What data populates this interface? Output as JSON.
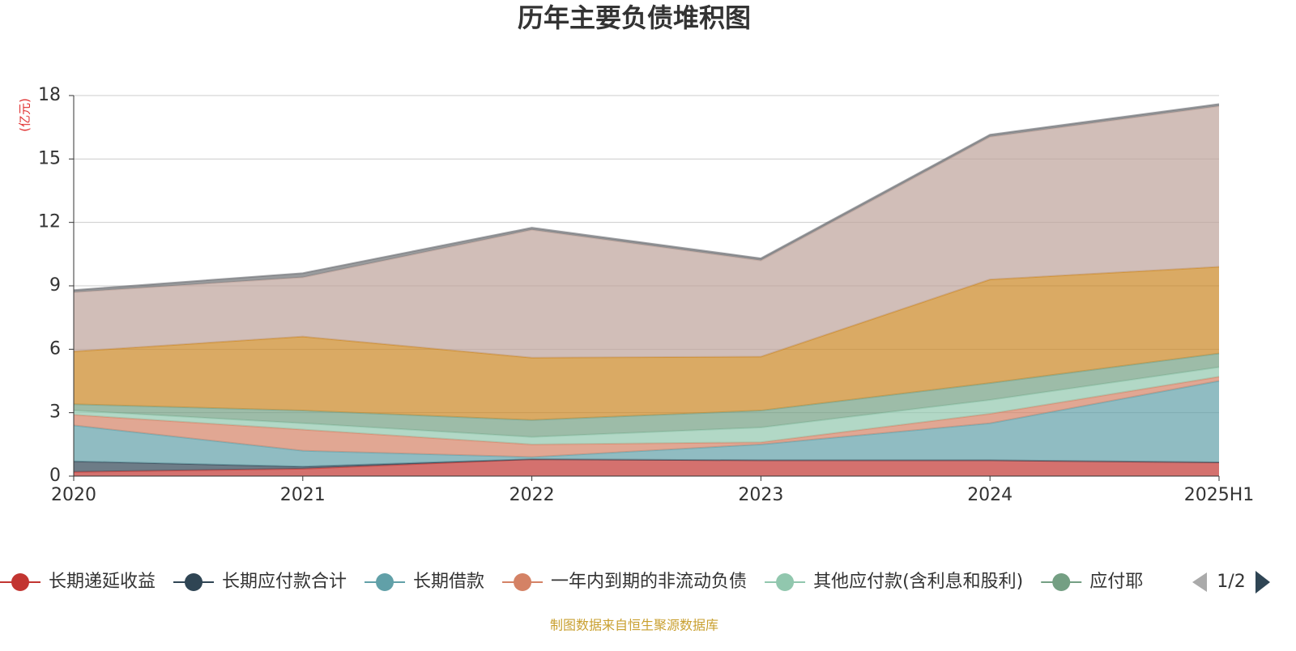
{
  "chart_data": {
    "type": "stacked-area",
    "title": "历年主要负债堆积图",
    "y_unit": "(亿元)",
    "source": "制图数据来自恒生聚源数据库",
    "categories": [
      "2020",
      "2021",
      "2022",
      "2023",
      "2024",
      "2025H1"
    ],
    "ylim": [
      0,
      18
    ],
    "yticks": [
      0,
      3,
      6,
      9,
      12,
      15,
      18
    ],
    "grid": true,
    "legend_page": "1/2",
    "series": [
      {
        "name": "长期递延收益",
        "color": "#c23531",
        "values": [
          0.2,
          0.35,
          0.8,
          0.75,
          0.75,
          0.65
        ]
      },
      {
        "name": "长期应付款合计",
        "color": "#2f4554",
        "values": [
          0.5,
          0.1,
          0,
          0,
          0,
          0
        ]
      },
      {
        "name": "长期借款",
        "color": "#61a0a8",
        "values": [
          1.7,
          0.75,
          0.1,
          0.75,
          1.75,
          3.85
        ]
      },
      {
        "name": "一年内到期的非流动负债",
        "color": "#d48265",
        "values": [
          0.5,
          1.0,
          0.6,
          0.1,
          0.45,
          0.2
        ]
      },
      {
        "name": "其他应付款(含利息和股利)",
        "color": "#91c7ae",
        "values": [
          0.2,
          0.3,
          0.35,
          0.7,
          0.65,
          0.45
        ]
      },
      {
        "name": "应付耶",
        "color": "#749f83",
        "values": [
          0.3,
          0.6,
          0.8,
          0.8,
          0.8,
          0.65
        ]
      },
      {
        "color": "#ca8622",
        "values": [
          2.5,
          3.5,
          2.95,
          2.55,
          4.9,
          4.1
        ]
      },
      {
        "color": "#bda29a",
        "values": [
          2.8,
          2.8,
          6.05,
          4.55,
          6.75,
          7.6
        ]
      },
      {
        "color": "#6e7074",
        "values": [
          0.1,
          0.2,
          0.1,
          0.1,
          0.1,
          0.1
        ]
      }
    ]
  }
}
